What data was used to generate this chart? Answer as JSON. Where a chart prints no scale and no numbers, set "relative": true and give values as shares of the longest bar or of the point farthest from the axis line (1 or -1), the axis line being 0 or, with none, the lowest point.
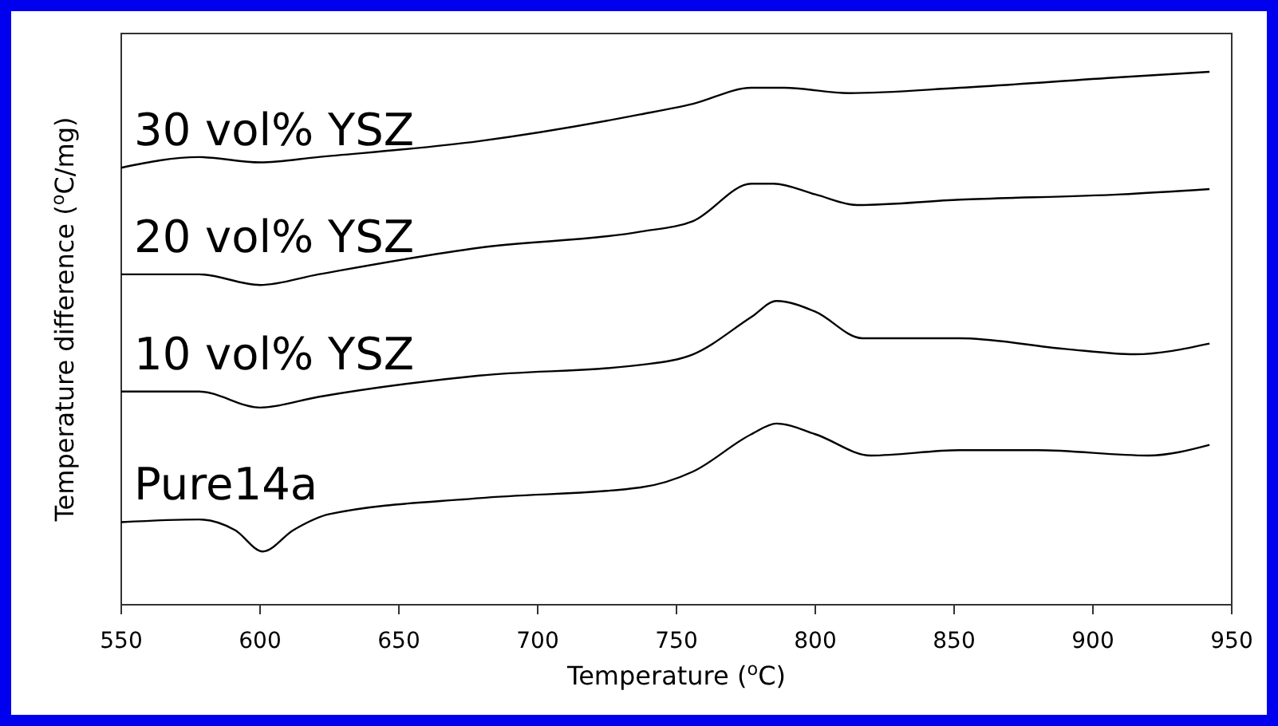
{
  "chart_data": {
    "type": "line",
    "relative": true,
    "xlabel": "Temperature ($^{o}$C)",
    "ylabel": "Temperature difference ($^{o}$C/mg)",
    "xlim": [
      550,
      950
    ],
    "xticks": [
      550,
      600,
      650,
      700,
      750,
      800,
      850,
      900,
      950
    ],
    "grid": false,
    "marker": "none",
    "line_style": "solid",
    "series": [
      {
        "name": "30 vol% YSZ",
        "color": "#000000",
        "x": [
          550,
          578,
          600,
          621,
          679,
          737,
          756,
          777,
          789,
          812,
          852,
          910,
          942
        ],
        "values": [
          0.82,
          0.84,
          0.83,
          0.84,
          0.87,
          0.92,
          0.94,
          0.97,
          0.97,
          0.96,
          0.97,
          0.99,
          1.0
        ]
      },
      {
        "name": "20 vol% YSZ",
        "color": "#000000",
        "x": [
          550,
          578,
          600,
          621,
          679,
          737,
          756,
          777,
          785,
          800,
          815,
          852,
          910,
          942
        ],
        "values": [
          0.62,
          0.62,
          0.6,
          0.62,
          0.67,
          0.7,
          0.72,
          0.79,
          0.79,
          0.77,
          0.75,
          0.76,
          0.77,
          0.78
        ]
      },
      {
        "name": "10 vol% YSZ",
        "color": "#000000",
        "x": [
          550,
          578,
          600,
          621,
          679,
          737,
          756,
          777,
          786,
          800,
          817,
          852,
          890,
          915,
          942
        ],
        "values": [
          0.4,
          0.4,
          0.37,
          0.39,
          0.43,
          0.45,
          0.47,
          0.54,
          0.57,
          0.55,
          0.5,
          0.5,
          0.48,
          0.47,
          0.49
        ]
      },
      {
        "name": "Pure14a",
        "color": "#000000",
        "x": [
          550,
          578,
          591,
          601,
          612,
          625,
          679,
          737,
          756,
          777,
          786,
          800,
          820,
          852,
          880,
          920,
          942
        ],
        "values": [
          0.155,
          0.16,
          0.14,
          0.1,
          0.14,
          0.17,
          0.2,
          0.22,
          0.25,
          0.32,
          0.34,
          0.32,
          0.28,
          0.29,
          0.29,
          0.28,
          0.3
        ]
      }
    ]
  }
}
